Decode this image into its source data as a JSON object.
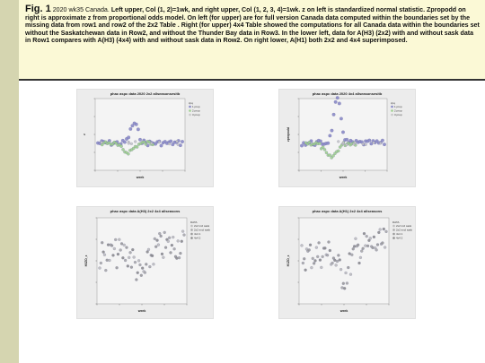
{
  "caption": {
    "fig_label": "Fig. 1",
    "date_text": "2020 wk35 Canada.",
    "body": "Left upper, Col (1, 2)=1wk, and right upper, Col (1, 2, 3, 4)=1wk.  z on left is standardized normal statistic.  Zpropodd on right is approximate z from proportional odds model. On left (for upper) are for full version Canada data computed within the boundaries set by the missing data from row1 and row2 of the 2x2 Table . Right (for upper) 4x4 Table showed the computations  for all Canada data within the boundaries set without the Saskatchewan data in Row2, and without the Thunder Bay data in Row3. In the lower left, data for A(H3) (2x2) with and without sask data in Row1 compares with A(H3) (4x4) with and without sask data in Row2. On right lower, A(H1) both 2x2 and 4x4 superimposed."
  },
  "panels": [
    {
      "title": "phac aspc data 2020 2x2 allseasonsesitb",
      "xlabel": "week",
      "ylabel": "z",
      "legend_title": "zpq",
      "legend": [
        "1 prop",
        "2 prop",
        "3 prop"
      ],
      "colors": [
        "#8a8ac8",
        "#9ed08e",
        "#c8c8c8"
      ]
    },
    {
      "title": "phac aspc data 2020 4x4 allseasonsesitb",
      "xlabel": "week",
      "ylabel": "zpropodd",
      "legend_title": "zpq",
      "legend": [
        "1 prop",
        "2 prop",
        "3 prop"
      ],
      "colors": [
        "#8a8ac8",
        "#9ed08e",
        "#c8c8c8"
      ]
    },
    {
      "title": "phac aspc data A(H3) 2x2 4x4 allseasons",
      "xlabel": "week",
      "ylabel": "H3ZD_z",
      "legend_title": "DATA",
      "legend": [
        "2x2 incl sask",
        "2x2 excl sask",
        "4x4 1",
        "4x4 2"
      ],
      "colors": [
        "#bdbdbd",
        "#a8a8a8",
        "#9a9a9a",
        "#8c8c8c"
      ]
    },
    {
      "title": "phac aspc data A(H1) 2x2 4x4 allseasons",
      "xlabel": "week",
      "ylabel": "H1ZD_z",
      "legend_title": "DATA",
      "legend": [
        "2x2 incl sask",
        "2x2 excl sask",
        "4x4 1",
        "4x4 2"
      ],
      "colors": [
        "#bdbdbd",
        "#a8a8a8",
        "#9a9a9a",
        "#8c8c8c"
      ]
    }
  ]
}
